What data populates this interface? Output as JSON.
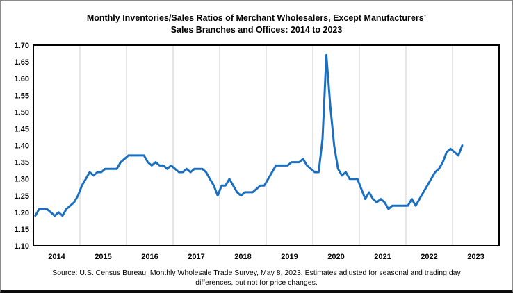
{
  "chart_data": {
    "type": "line",
    "title_line1": "Monthly Inventories/Sales Ratios of Merchant Wholesalers, Except Manufacturers’",
    "title_line2": "Sales Branches and Offices: 2014 to 2023",
    "source_line1": "Source: U.S. Census Bureau, Monthly Wholesale Trade Survey, May 8, 2023. Estimates adjusted for seasonal and trading day",
    "source_line2": "differences, but not for price changes.",
    "x_tick_labels": [
      "2014",
      "2015",
      "2016",
      "2017",
      "2018",
      "2019",
      "2020",
      "2021",
      "2022",
      "2023"
    ],
    "y_ticks": [
      1.1,
      1.15,
      1.2,
      1.25,
      1.3,
      1.35,
      1.4,
      1.45,
      1.5,
      1.55,
      1.6,
      1.65,
      1.7
    ],
    "ylim": [
      1.1,
      1.7
    ],
    "xlabel": "",
    "ylabel": "",
    "legend": "none",
    "grid": "vertical-year-gridlines",
    "gridline_color": "#d9d9d9",
    "axis_color": "#000000",
    "background_color": "#ffffff",
    "series": [
      {
        "name": "Inventories/Sales Ratio",
        "color": "#1b6fc1",
        "frequency": "monthly",
        "start": "2014-01",
        "end": "2023-03",
        "values": [
          1.19,
          1.21,
          1.21,
          1.21,
          1.2,
          1.19,
          1.2,
          1.19,
          1.21,
          1.22,
          1.23,
          1.25,
          1.28,
          1.3,
          1.32,
          1.31,
          1.32,
          1.32,
          1.33,
          1.33,
          1.33,
          1.33,
          1.35,
          1.36,
          1.37,
          1.37,
          1.37,
          1.37,
          1.37,
          1.35,
          1.34,
          1.35,
          1.34,
          1.34,
          1.33,
          1.34,
          1.33,
          1.32,
          1.32,
          1.33,
          1.32,
          1.33,
          1.33,
          1.33,
          1.32,
          1.3,
          1.28,
          1.25,
          1.28,
          1.28,
          1.3,
          1.28,
          1.26,
          1.25,
          1.26,
          1.26,
          1.26,
          1.27,
          1.28,
          1.28,
          1.3,
          1.32,
          1.34,
          1.34,
          1.34,
          1.34,
          1.35,
          1.35,
          1.35,
          1.36,
          1.34,
          1.33,
          1.32,
          1.32,
          1.42,
          1.67,
          1.52,
          1.4,
          1.33,
          1.31,
          1.32,
          1.3,
          1.3,
          1.3,
          1.27,
          1.24,
          1.26,
          1.24,
          1.23,
          1.24,
          1.23,
          1.21,
          1.22,
          1.22,
          1.22,
          1.22,
          1.22,
          1.24,
          1.22,
          1.24,
          1.26,
          1.28,
          1.3,
          1.32,
          1.33,
          1.35,
          1.38,
          1.39,
          1.38,
          1.37,
          1.4
        ]
      }
    ]
  }
}
